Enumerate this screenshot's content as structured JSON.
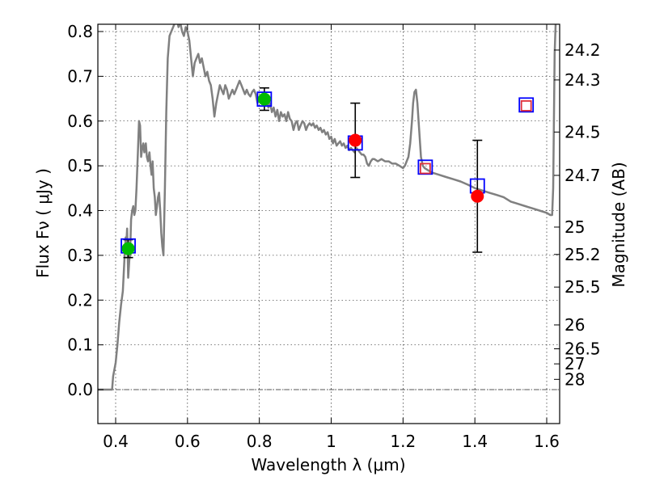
{
  "chart_data": {
    "type": "scatter",
    "xlabel": "Wavelength  λ (μm)",
    "ylabel": "Flux  Fν  ( μJy )",
    "y2label": "Magnitude (AB)",
    "xlim": [
      0.35,
      1.63
    ],
    "ylim": [
      -0.08,
      0.815
    ],
    "grid": true,
    "x_ticks": [
      0.4,
      0.6,
      0.8,
      1.0,
      1.2,
      1.4,
      1.6
    ],
    "x_tick_labels": [
      "0.4",
      "0.6",
      "0.8",
      "1",
      "1.2",
      "1.4",
      "1.6"
    ],
    "y_ticks": [
      0.0,
      0.1,
      0.2,
      0.3,
      0.4,
      0.5,
      0.6,
      0.7,
      0.8
    ],
    "y_tick_labels": [
      "0.0",
      "0.1",
      "0.2",
      "0.3",
      "0.4",
      "0.5",
      "0.6",
      "0.7",
      "0.8"
    ],
    "mag_ticks": [
      "24.2",
      "24.3",
      "24.5",
      "24.7",
      "25",
      "25.2",
      "25.5",
      "26",
      "26.5",
      "27",
      "28"
    ],
    "colors": {
      "sed": "#808080",
      "green_points": "#00bb00",
      "red_points": "#ff0000",
      "model_boxes": "#0000ff",
      "model_boxes_inner": "#e0303a",
      "zero_line": "#555555"
    },
    "series": [
      {
        "role": "template-sed",
        "kind": "line",
        "points": [
          [
            0.35,
            0.0
          ],
          [
            0.39,
            0.0
          ],
          [
            0.393,
            0.03
          ],
          [
            0.4,
            0.06
          ],
          [
            0.405,
            0.1
          ],
          [
            0.41,
            0.15
          ],
          [
            0.415,
            0.19
          ],
          [
            0.42,
            0.22
          ],
          [
            0.425,
            0.3
          ],
          [
            0.428,
            0.34
          ],
          [
            0.43,
            0.33
          ],
          [
            0.432,
            0.36
          ],
          [
            0.435,
            0.25
          ],
          [
            0.438,
            0.29
          ],
          [
            0.44,
            0.3
          ],
          [
            0.443,
            0.38
          ],
          [
            0.446,
            0.4
          ],
          [
            0.449,
            0.41
          ],
          [
            0.452,
            0.39
          ],
          [
            0.455,
            0.4
          ],
          [
            0.458,
            0.45
          ],
          [
            0.462,
            0.53
          ],
          [
            0.465,
            0.6
          ],
          [
            0.468,
            0.59
          ],
          [
            0.471,
            0.52
          ],
          [
            0.474,
            0.54
          ],
          [
            0.477,
            0.55
          ],
          [
            0.48,
            0.53
          ],
          [
            0.484,
            0.55
          ],
          [
            0.487,
            0.52
          ],
          [
            0.49,
            0.51
          ],
          [
            0.494,
            0.53
          ],
          [
            0.497,
            0.5
          ],
          [
            0.5,
            0.48
          ],
          [
            0.503,
            0.51
          ],
          [
            0.506,
            0.45
          ],
          [
            0.509,
            0.43
          ],
          [
            0.512,
            0.39
          ],
          [
            0.515,
            0.41
          ],
          [
            0.518,
            0.43
          ],
          [
            0.521,
            0.44
          ],
          [
            0.524,
            0.4
          ],
          [
            0.527,
            0.35
          ],
          [
            0.53,
            0.32
          ],
          [
            0.533,
            0.3
          ],
          [
            0.537,
            0.45
          ],
          [
            0.541,
            0.62
          ],
          [
            0.545,
            0.74
          ],
          [
            0.55,
            0.79
          ],
          [
            0.555,
            0.8
          ],
          [
            0.56,
            0.81
          ],
          [
            0.565,
            0.82
          ],
          [
            0.57,
            0.83
          ],
          [
            0.575,
            0.81
          ],
          [
            0.58,
            0.82
          ],
          [
            0.585,
            0.8
          ],
          [
            0.59,
            0.79
          ],
          [
            0.595,
            0.81
          ],
          [
            0.6,
            0.8
          ],
          [
            0.605,
            0.78
          ],
          [
            0.61,
            0.74
          ],
          [
            0.615,
            0.7
          ],
          [
            0.62,
            0.73
          ],
          [
            0.625,
            0.74
          ],
          [
            0.63,
            0.75
          ],
          [
            0.635,
            0.73
          ],
          [
            0.64,
            0.74
          ],
          [
            0.645,
            0.72
          ],
          [
            0.65,
            0.7
          ],
          [
            0.655,
            0.71
          ],
          [
            0.66,
            0.69
          ],
          [
            0.665,
            0.68
          ],
          [
            0.67,
            0.65
          ],
          [
            0.675,
            0.61
          ],
          [
            0.68,
            0.64
          ],
          [
            0.685,
            0.66
          ],
          [
            0.69,
            0.68
          ],
          [
            0.695,
            0.67
          ],
          [
            0.7,
            0.66
          ],
          [
            0.705,
            0.68
          ],
          [
            0.71,
            0.67
          ],
          [
            0.715,
            0.65
          ],
          [
            0.72,
            0.66
          ],
          [
            0.725,
            0.67
          ],
          [
            0.73,
            0.66
          ],
          [
            0.735,
            0.67
          ],
          [
            0.74,
            0.68
          ],
          [
            0.745,
            0.69
          ],
          [
            0.75,
            0.68
          ],
          [
            0.755,
            0.67
          ],
          [
            0.76,
            0.66
          ],
          [
            0.765,
            0.67
          ],
          [
            0.77,
            0.66
          ],
          [
            0.775,
            0.655
          ],
          [
            0.78,
            0.665
          ],
          [
            0.785,
            0.67
          ],
          [
            0.79,
            0.66
          ],
          [
            0.795,
            0.64
          ],
          [
            0.8,
            0.655
          ],
          [
            0.805,
            0.645
          ],
          [
            0.81,
            0.655
          ],
          [
            0.815,
            0.64
          ],
          [
            0.82,
            0.65
          ],
          [
            0.825,
            0.63
          ],
          [
            0.83,
            0.64
          ],
          [
            0.835,
            0.62
          ],
          [
            0.84,
            0.63
          ],
          [
            0.845,
            0.61
          ],
          [
            0.85,
            0.625
          ],
          [
            0.855,
            0.6
          ],
          [
            0.86,
            0.62
          ],
          [
            0.865,
            0.61
          ],
          [
            0.87,
            0.615
          ],
          [
            0.875,
            0.6
          ],
          [
            0.88,
            0.62
          ],
          [
            0.885,
            0.605
          ],
          [
            0.89,
            0.6
          ],
          [
            0.895,
            0.58
          ],
          [
            0.9,
            0.595
          ],
          [
            0.905,
            0.6
          ],
          [
            0.91,
            0.58
          ],
          [
            0.915,
            0.59
          ],
          [
            0.92,
            0.6
          ],
          [
            0.925,
            0.595
          ],
          [
            0.93,
            0.58
          ],
          [
            0.935,
            0.59
          ],
          [
            0.94,
            0.595
          ],
          [
            0.945,
            0.59
          ],
          [
            0.95,
            0.595
          ],
          [
            0.955,
            0.585
          ],
          [
            0.96,
            0.59
          ],
          [
            0.965,
            0.58
          ],
          [
            0.97,
            0.585
          ],
          [
            0.975,
            0.575
          ],
          [
            0.98,
            0.58
          ],
          [
            0.985,
            0.57
          ],
          [
            0.99,
            0.575
          ],
          [
            0.995,
            0.56
          ],
          [
            1.0,
            0.565
          ],
          [
            1.005,
            0.55
          ],
          [
            1.01,
            0.56
          ],
          [
            1.015,
            0.545
          ],
          [
            1.02,
            0.55
          ],
          [
            1.025,
            0.555
          ],
          [
            1.03,
            0.545
          ],
          [
            1.035,
            0.55
          ],
          [
            1.04,
            0.54
          ],
          [
            1.045,
            0.545
          ],
          [
            1.05,
            0.535
          ],
          [
            1.055,
            0.54
          ],
          [
            1.06,
            0.535
          ],
          [
            1.065,
            0.53
          ],
          [
            1.07,
            0.54
          ],
          [
            1.075,
            0.535
          ],
          [
            1.08,
            0.53
          ],
          [
            1.085,
            0.525
          ],
          [
            1.09,
            0.525
          ],
          [
            1.095,
            0.52
          ],
          [
            1.1,
            0.505
          ],
          [
            1.105,
            0.5
          ],
          [
            1.11,
            0.51
          ],
          [
            1.115,
            0.515
          ],
          [
            1.12,
            0.515
          ],
          [
            1.13,
            0.51
          ],
          [
            1.14,
            0.515
          ],
          [
            1.15,
            0.51
          ],
          [
            1.16,
            0.51
          ],
          [
            1.17,
            0.505
          ],
          [
            1.18,
            0.505
          ],
          [
            1.19,
            0.5
          ],
          [
            1.2,
            0.495
          ],
          [
            1.205,
            0.5
          ],
          [
            1.21,
            0.51
          ],
          [
            1.215,
            0.52
          ],
          [
            1.22,
            0.55
          ],
          [
            1.225,
            0.6
          ],
          [
            1.228,
            0.64
          ],
          [
            1.232,
            0.665
          ],
          [
            1.236,
            0.67
          ],
          [
            1.24,
            0.64
          ],
          [
            1.245,
            0.58
          ],
          [
            1.25,
            0.52
          ],
          [
            1.255,
            0.5
          ],
          [
            1.26,
            0.495
          ],
          [
            1.27,
            0.49
          ],
          [
            1.28,
            0.485
          ],
          [
            1.3,
            0.48
          ],
          [
            1.32,
            0.475
          ],
          [
            1.34,
            0.47
          ],
          [
            1.36,
            0.465
          ],
          [
            1.38,
            0.458
          ],
          [
            1.4,
            0.45
          ],
          [
            1.42,
            0.445
          ],
          [
            1.44,
            0.44
          ],
          [
            1.46,
            0.435
          ],
          [
            1.48,
            0.43
          ],
          [
            1.5,
            0.42
          ],
          [
            1.52,
            0.415
          ],
          [
            1.54,
            0.41
          ],
          [
            1.56,
            0.405
          ],
          [
            1.58,
            0.4
          ],
          [
            1.6,
            0.395
          ],
          [
            1.61,
            0.39
          ],
          [
            1.615,
            0.39
          ],
          [
            1.618,
            0.45
          ],
          [
            1.62,
            0.6
          ],
          [
            1.622,
            0.75
          ],
          [
            1.625,
            0.82
          ]
        ]
      },
      {
        "role": "photometry-green",
        "kind": "errorbar",
        "points": [
          {
            "x": 0.435,
            "y": 0.315,
            "yerr": 0.02
          },
          {
            "x": 0.814,
            "y": 0.649,
            "yerr": 0.025
          }
        ]
      },
      {
        "role": "photometry-red",
        "kind": "errorbar",
        "points": [
          {
            "x": 1.067,
            "y": 0.557,
            "yerr": 0.083
          },
          {
            "x": 1.407,
            "y": 0.432,
            "yerr": 0.125
          }
        ]
      },
      {
        "role": "model-boxes",
        "kind": "square-marker",
        "points": [
          {
            "x": 0.435,
            "y": 0.321,
            "size": "normal"
          },
          {
            "x": 0.814,
            "y": 0.649,
            "size": "normal"
          },
          {
            "x": 1.067,
            "y": 0.551,
            "size": "normal"
          },
          {
            "x": 1.262,
            "y": 0.497,
            "size": "normal"
          },
          {
            "x": 1.407,
            "y": 0.455,
            "size": "normal"
          },
          {
            "x": 1.543,
            "y": 0.636,
            "size": "normal"
          }
        ]
      },
      {
        "role": "model-boxes-inner",
        "kind": "square-marker",
        "points": [
          {
            "x": 1.262,
            "y": 0.494,
            "size": "small"
          },
          {
            "x": 1.543,
            "y": 0.634,
            "size": "small"
          }
        ]
      }
    ]
  }
}
